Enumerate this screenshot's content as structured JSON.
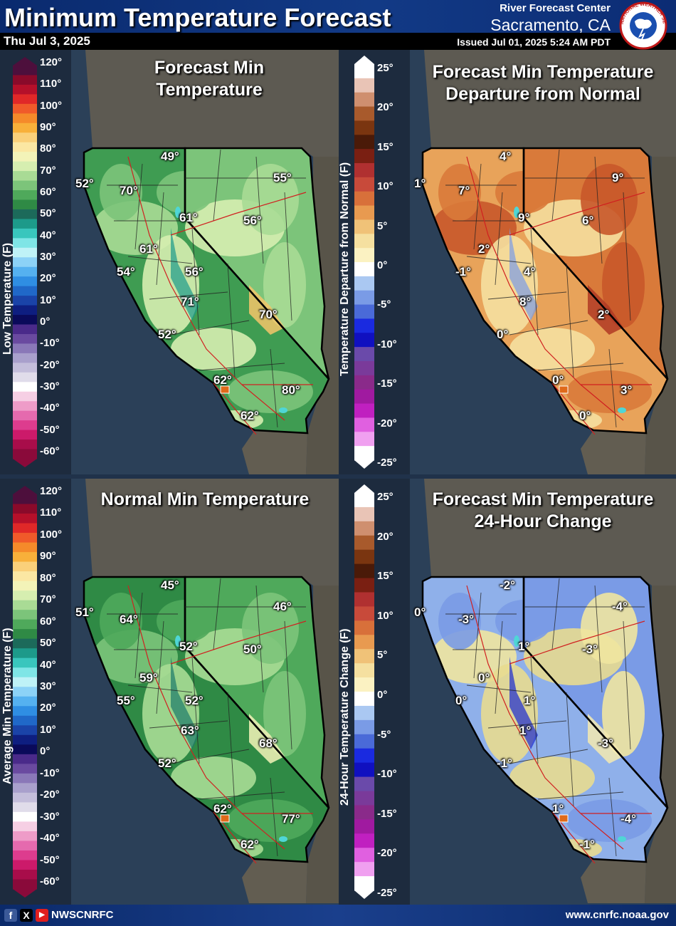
{
  "header": {
    "title": "Minimum Temperature Forecast",
    "date": "Thu Jul 3, 2025",
    "rfc_line1": "River Forecast Center",
    "rfc_line2": "Sacramento, CA",
    "issued": "Issued Jul 01, 2025 5:24 AM PDT",
    "logo_text": "NATIONAL WEATHER SERVICE"
  },
  "legends": {
    "temp_ticks": [
      "120°",
      "110°",
      "100°",
      "90°",
      "80°",
      "70°",
      "60°",
      "50°",
      "40°",
      "30°",
      "20°",
      "10°",
      "0°",
      "-10°",
      "-20°",
      "-30°",
      "-40°",
      "-50°",
      "-60°"
    ],
    "dep_ticks": [
      "25°",
      "20°",
      "15°",
      "10°",
      "5°",
      "0°",
      "-5°",
      "-10°",
      "-15°",
      "-20°",
      "-25°"
    ],
    "forecast_axis": "Low Temperature (F)",
    "normal_axis": "Average Min Temperature (F)",
    "departure_axis": "Temperature Departure from Normal (F)",
    "change_axis": "24-Hour Temperature Change (F)"
  },
  "panels": {
    "forecast": {
      "title": "Forecast Min\nTemperature",
      "labels": [
        "52°",
        "70°",
        "49°",
        "55°",
        "61°",
        "56°",
        "61°",
        "54°",
        "56°",
        "71°",
        "70°",
        "52°",
        "62°",
        "80°",
        "62°"
      ]
    },
    "departure": {
      "title": "Forecast Min Temperature\nDeparture from Normal",
      "labels": [
        "1°",
        "7°",
        "4°",
        "9°",
        "9°",
        "6°",
        "2°",
        "-1°",
        "4°",
        "8°",
        "2°",
        "0°",
        "0°",
        "3°",
        "0°"
      ]
    },
    "normal": {
      "title": "Normal Min Temperature",
      "labels": [
        "51°",
        "64°",
        "45°",
        "46°",
        "52°",
        "50°",
        "59°",
        "55°",
        "52°",
        "63°",
        "68°",
        "52°",
        "62°",
        "77°",
        "62°"
      ]
    },
    "change": {
      "title": "Forecast Min Temperature\n24-Hour Change",
      "labels": [
        "0°",
        "-3°",
        "-2°",
        "-4°",
        "1°",
        "-3°",
        "0°",
        "0°",
        "1°",
        "1°",
        "-3°",
        "-1°",
        "1°",
        "-4°",
        "-1°"
      ]
    }
  },
  "colors": {
    "temp_scale": [
      "#4d0f3c",
      "#8a0a2a",
      "#b5102a",
      "#e02828",
      "#f05a2a",
      "#f58a2a",
      "#f8b03a",
      "#fad07a",
      "#fbe7a3",
      "#f3f3b8",
      "#d6eeb0",
      "#a9db95",
      "#7cc47a",
      "#4fa95b",
      "#2f8a45",
      "#1c6a5a",
      "#1d9a8a",
      "#39c6bd",
      "#7fe5e6",
      "#bff2f7",
      "#8cd2f7",
      "#55b1f0",
      "#2f8ee3",
      "#2068c8",
      "#1a43a8",
      "#0e1e80",
      "#0a0a5a",
      "#4a2a8a",
      "#6a4aa0",
      "#8a78b8",
      "#a9a0cc",
      "#c4bedb",
      "#e0dcea",
      "#ffffff",
      "#f6cfe4",
      "#ee9cc8",
      "#e56aae",
      "#dd3c8e",
      "#cc1a6a",
      "#a80d4a",
      "#8a0a3a"
    ],
    "dep_scale": [
      "#ffffff",
      "#e9c4b6",
      "#cf8f6f",
      "#a85a2c",
      "#7a3510",
      "#4a1a08",
      "#7a1f12",
      "#b03030",
      "#c84a3a",
      "#d8703a",
      "#e89a50",
      "#f0c278",
      "#f5e0a0",
      "#fbf2c2",
      "#ffffff",
      "#aac8f2",
      "#7a9be6",
      "#4a6ad8",
      "#1a2ae0",
      "#1010c0",
      "#6a4aaa",
      "#7a3a9a",
      "#8a2a8a",
      "#a01aa0",
      "#c020c0",
      "#e060e0",
      "#f0a0f0",
      "#ffffff"
    ]
  },
  "footer": {
    "handle": "NWSCNRFC",
    "website": "www.cnrfc.noaa.gov"
  }
}
